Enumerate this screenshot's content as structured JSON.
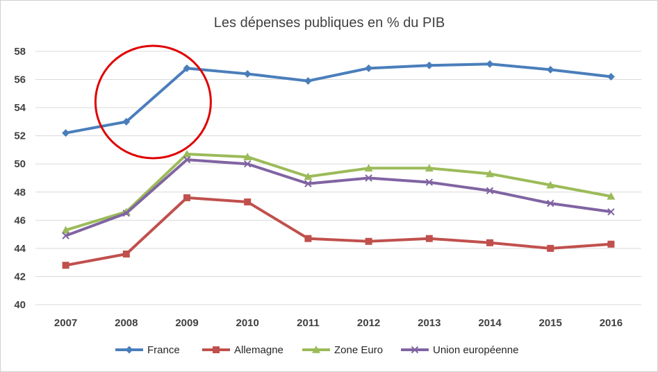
{
  "chart_data": {
    "type": "line",
    "title": "Les dépenses publiques  en % du PIB",
    "xlabel": "",
    "ylabel": "",
    "x": [
      "2007",
      "2008",
      "2009",
      "2010",
      "2011",
      "2012",
      "2013",
      "2014",
      "2015",
      "2016"
    ],
    "ylim": [
      40,
      58
    ],
    "yticks": [
      40,
      42,
      44,
      46,
      48,
      50,
      52,
      54,
      56,
      58
    ],
    "grid": true,
    "legend_position": "bottom",
    "series": [
      {
        "name": "France",
        "color": "#4a7ebb",
        "marker": "diamond",
        "values": [
          52.2,
          53.0,
          56.8,
          56.4,
          55.9,
          56.8,
          57.0,
          57.1,
          56.7,
          56.2
        ]
      },
      {
        "name": "Allemagne",
        "color": "#c0504d",
        "marker": "square",
        "values": [
          42.8,
          43.6,
          47.6,
          47.3,
          44.7,
          44.5,
          44.7,
          44.4,
          44.0,
          44.3
        ]
      },
      {
        "name": "Zone Euro",
        "color": "#9bbb59",
        "marker": "triangle",
        "values": [
          45.3,
          46.6,
          50.7,
          50.5,
          49.1,
          49.7,
          49.7,
          49.3,
          48.5,
          47.7
        ]
      },
      {
        "name": "Union européenne",
        "color": "#8064a2",
        "marker": "x",
        "values": [
          44.9,
          46.5,
          50.3,
          50.0,
          48.6,
          49.0,
          48.7,
          48.1,
          47.2,
          46.6
        ]
      }
    ],
    "annotation": {
      "shape": "circle",
      "color": "#e00000",
      "around_x": [
        "2008",
        "2009"
      ],
      "center_y": 54.4
    }
  }
}
